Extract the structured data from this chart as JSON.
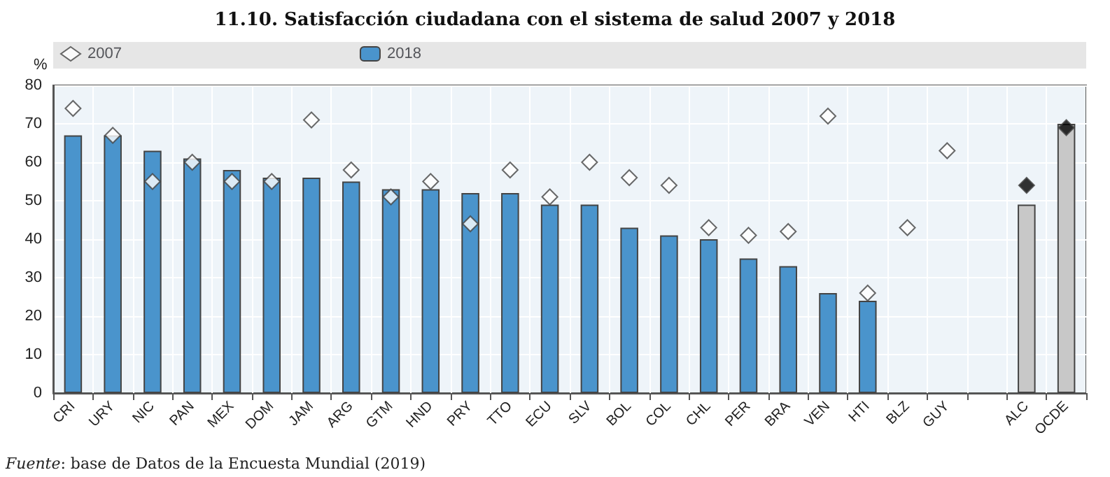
{
  "chart_data": {
    "type": "bar",
    "title": "11.10. Satisfacción ciudadana con el sistema de salud 2007 y 2018",
    "ylabel": "%",
    "categories": [
      "CRI",
      "URY",
      "NIC",
      "PAN",
      "MEX",
      "DOM",
      "JAM",
      "ARG",
      "GTM",
      "HND",
      "PRY",
      "TTO",
      "ECU",
      "SLV",
      "BOL",
      "COL",
      "CHL",
      "PER",
      "BRA",
      "VEN",
      "HTI",
      "BLZ",
      "GUY",
      null,
      "ALC",
      "OCDE"
    ],
    "series": [
      {
        "name": "2007",
        "type": "scatter",
        "marker": "diamond",
        "color": "#ffffff",
        "colors": [
          "#ffffff",
          "#ffffff",
          "#ffffff",
          "#ffffff",
          "#ffffff",
          "#ffffff",
          "#ffffff",
          "#ffffff",
          "#ffffff",
          "#ffffff",
          "#ffffff",
          "#ffffff",
          "#ffffff",
          "#ffffff",
          "#ffffff",
          "#ffffff",
          "#ffffff",
          "#ffffff",
          "#ffffff",
          "#ffffff",
          "#ffffff",
          "#ffffff",
          "#ffffff",
          "#ffffff",
          "#000000",
          "#000000"
        ],
        "values": [
          74,
          67,
          55,
          60,
          55,
          55,
          71,
          58,
          51,
          55,
          44,
          58,
          51,
          60,
          56,
          54,
          43,
          41,
          42,
          72,
          26,
          43,
          63,
          null,
          54,
          69
        ]
      },
      {
        "name": "2018",
        "color": "#4a94cc",
        "colors": [
          "#4a94cc",
          "#4a94cc",
          "#4a94cc",
          "#4a94cc",
          "#4a94cc",
          "#4a94cc",
          "#4a94cc",
          "#4a94cc",
          "#4a94cc",
          "#4a94cc",
          "#4a94cc",
          "#4a94cc",
          "#4a94cc",
          "#4a94cc",
          "#4a94cc",
          "#4a94cc",
          "#4a94cc",
          "#4a94cc",
          "#4a94cc",
          "#4a94cc",
          "#4a94cc",
          "#4a94cc",
          "#4a94cc",
          "#4a94cc",
          "#c8c8c8",
          "#c8c8c8"
        ],
        "values": [
          67,
          67,
          63,
          61,
          58,
          56,
          56,
          55,
          53,
          53,
          52,
          52,
          49,
          49,
          43,
          41,
          40,
          35,
          33,
          26,
          24,
          null,
          null,
          null,
          49,
          70
        ]
      }
    ],
    "ylim": [
      0,
      80
    ],
    "yticks": [
      0,
      10,
      20,
      30,
      40,
      50,
      60,
      70,
      80
    ],
    "grid": true,
    "legend": "top",
    "annotations": [
      "Fuente: base de Datos de la Encuesta Mundial (2019)"
    ]
  }
}
